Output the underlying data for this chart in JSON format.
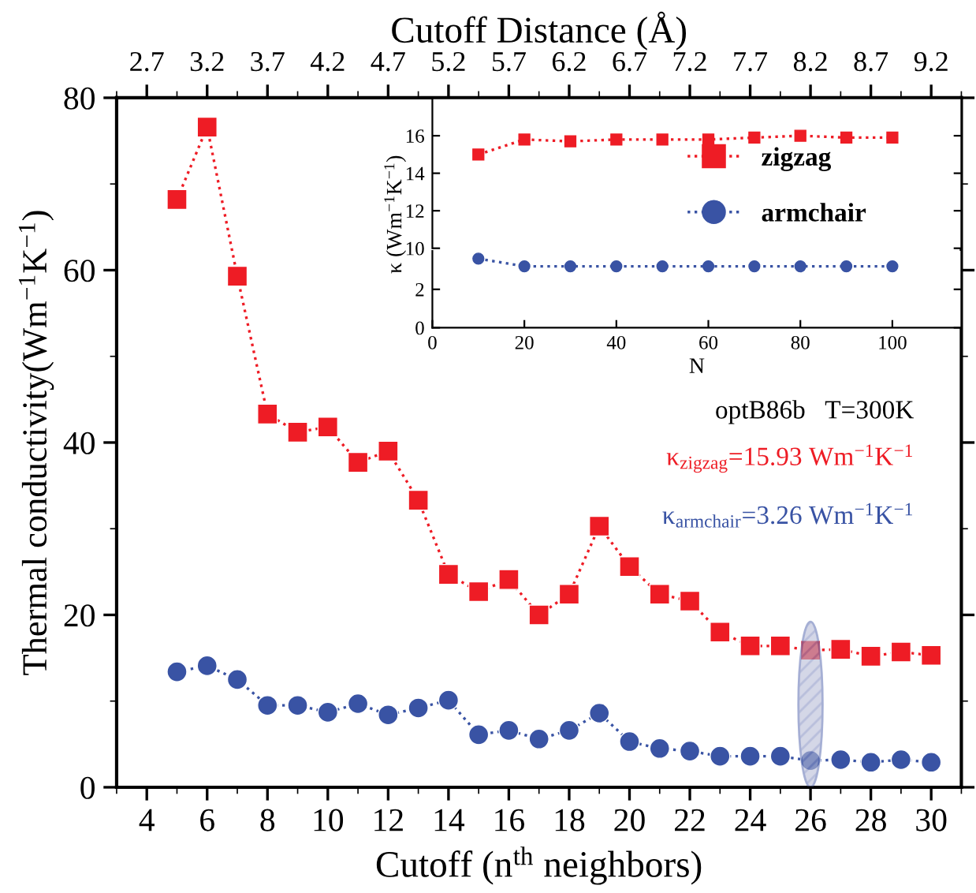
{
  "chart_data": [
    {
      "type": "line",
      "xlabel": "Cutoff (n$^{th}$ neighbors)",
      "ylabel": "Thermal conductivity(Wm$^{−1}$K$^{−1}$)",
      "x2label": "Cutoff Distance (Å)",
      "x": [
        5,
        6,
        7,
        8,
        9,
        10,
        11,
        12,
        13,
        14,
        15,
        16,
        17,
        18,
        19,
        20,
        21,
        22,
        23,
        24,
        25,
        26,
        27,
        28,
        29,
        30
      ],
      "series": [
        {
          "color": "#ee1c25",
          "marker": "square",
          "values": [
            68.2,
            76.6,
            59.3,
            43.3,
            41.2,
            41.8,
            37.7,
            39.0,
            33.3,
            24.7,
            22.7,
            24.1,
            20.0,
            22.4,
            30.3,
            25.6,
            22.4,
            21.6,
            18.0,
            16.4,
            16.4,
            15.9,
            16.0,
            15.2,
            15.7,
            15.3
          ]
        },
        {
          "color": "#3953a4",
          "marker": "circle",
          "values": [
            13.4,
            14.1,
            12.5,
            9.5,
            9.5,
            8.7,
            9.7,
            8.4,
            9.2,
            10.1,
            6.1,
            6.6,
            5.6,
            6.6,
            8.6,
            5.3,
            4.5,
            4.2,
            3.6,
            3.6,
            3.6,
            3.1,
            3.2,
            2.9,
            3.2,
            2.9
          ]
        }
      ],
      "line_style": "dotted",
      "legend": false,
      "xlim": [
        3,
        31
      ],
      "xticks": [
        4,
        6,
        8,
        10,
        12,
        14,
        16,
        18,
        20,
        22,
        24,
        26,
        28,
        30
      ],
      "ylim": [
        0,
        80
      ],
      "yticks": [
        0,
        20,
        40,
        60,
        80
      ],
      "x2lim": [
        2.45,
        9.45
      ],
      "x2ticks": [
        2.7,
        3.2,
        3.7,
        4.2,
        4.7,
        5.2,
        5.7,
        6.2,
        6.7,
        7.2,
        7.7,
        8.2,
        8.7,
        9.2
      ],
      "annotations": [
        "optB86b   T=300K",
        "κ$_{zigzag}$=15.93 Wm$^{−1}$K$^{−1}$",
        "κ$_{armchair}$=3.26 Wm$^{−1}$K$^{−1}$"
      ],
      "grid": false
    },
    {
      "type": "line",
      "ylabel": "κ (Wm$^{−1}$K$^{−1}$)",
      "x": [
        10,
        20,
        30,
        40,
        50,
        60,
        70,
        80,
        90,
        100
      ],
      "series": [
        {
          "name": "zigzag",
          "color": "#ee1c25",
          "marker": "square",
          "values": [
            15.0,
            15.8,
            15.7,
            15.8,
            15.8,
            15.8,
            15.9,
            16.0,
            15.9,
            15.9
          ]
        }
      ],
      "line_style": "dotted",
      "legend": "top right",
      "xlim": [
        0,
        115
      ],
      "ylim": [
        10,
        18
      ],
      "yticks": [
        10,
        12,
        14,
        16
      ],
      "tick_labels": "y",
      "grid": false
    },
    {
      "type": "line",
      "xlabel": "N",
      "x": [
        10,
        20,
        30,
        40,
        50,
        60,
        70,
        80,
        90,
        100
      ],
      "series": [
        {
          "name": "armchair",
          "color": "#3953a4",
          "marker": "circle",
          "values": [
            3.6,
            3.2,
            3.2,
            3.2,
            3.2,
            3.2,
            3.2,
            3.2,
            3.2,
            3.2
          ]
        }
      ],
      "line_style": "dotted",
      "xlim": [
        0,
        115
      ],
      "xticks": [
        0,
        20,
        40,
        60,
        80,
        100
      ],
      "ylim": [
        0,
        4
      ],
      "yticks": [
        0,
        2
      ],
      "grid": false
    }
  ]
}
